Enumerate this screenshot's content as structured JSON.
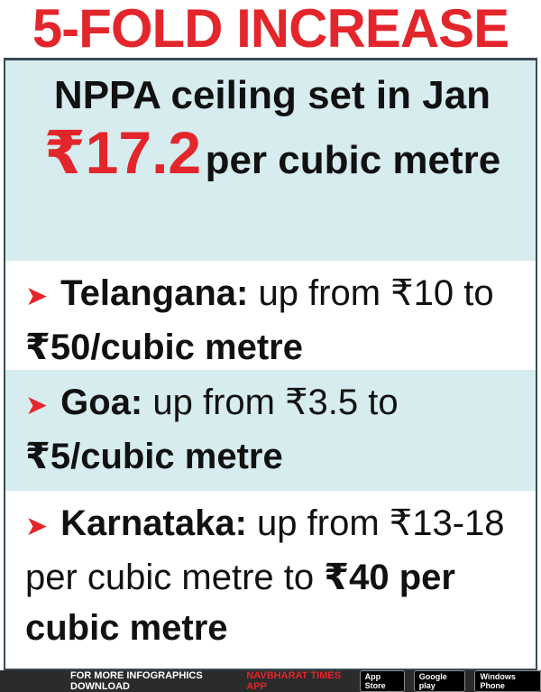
{
  "title": "5-FOLD INCREASE",
  "ceiling": {
    "label": "NPPA ceiling set in Jan",
    "price": "₹17.2",
    "unit": "per cubic metre"
  },
  "items": [
    {
      "state": "Telangana:",
      "text": "up from ₹10 to",
      "bold": "₹50/cubic metre"
    },
    {
      "state": "Goa:",
      "text": "up from ₹3.5 to",
      "bold": "₹5/cubic metre"
    },
    {
      "state": "Karnataka:",
      "text": "up from ₹13-18 per cubic metre to",
      "bold": "₹40 per cubic metre"
    }
  ],
  "footer": {
    "text": "FOR MORE INFOGRAPHICS DOWNLOAD",
    "app": "NAVBHARAT TIMES APP",
    "badges": [
      "App Store",
      "Google play",
      "Windows Phone"
    ]
  }
}
